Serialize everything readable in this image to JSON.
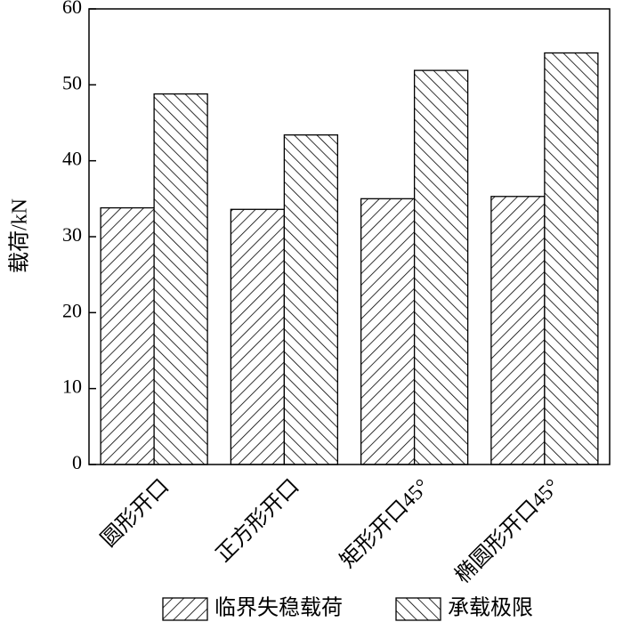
{
  "chart_data": {
    "type": "bar",
    "y_label": "载荷/kN",
    "categories": [
      "圆形开口",
      "正方形开口",
      "矩形开口45°",
      "椭圆形开口45°"
    ],
    "series": [
      {
        "name": "临界失稳载荷",
        "color": "#000000",
        "hatch": "back",
        "values": [
          33.8,
          33.6,
          35.0,
          35.3
        ]
      },
      {
        "name": "承载极限",
        "color": "#000000",
        "hatch": "forward",
        "values": [
          48.8,
          43.4,
          51.9,
          54.2
        ]
      }
    ],
    "ylim": [
      0,
      60
    ],
    "yticks": [
      0,
      10,
      20,
      30,
      40,
      50,
      60
    ],
    "legend": "bottom"
  }
}
